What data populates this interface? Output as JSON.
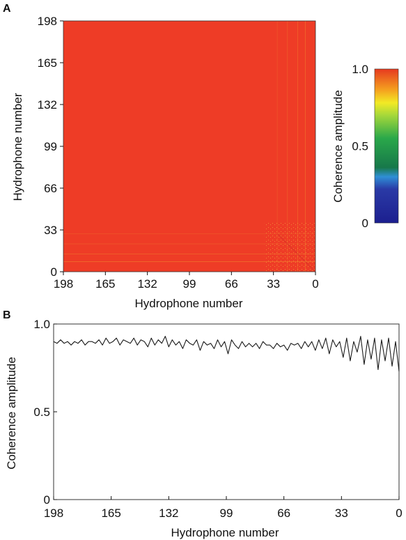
{
  "chart_data": [
    {
      "panel": "A",
      "type": "heatmap",
      "xlabel": "Hydrophone number",
      "ylabel": "Hydrophone number",
      "x_ticks": [
        "198",
        "165",
        "132",
        "99",
        "66",
        "33",
        "0"
      ],
      "y_ticks": [
        "198",
        "165",
        "132",
        "99",
        "66",
        "33",
        "0"
      ],
      "xlim": [
        198,
        0
      ],
      "ylim": [
        0,
        198
      ],
      "colorbar": {
        "label": "Coherence amplitude",
        "ticks": [
          "1.0",
          "0.5",
          "0"
        ],
        "range": [
          0,
          1
        ],
        "colors": [
          "#1c1f8f",
          "#2a3aa6",
          "#2f8fd6",
          "#17784a",
          "#2aa84a",
          "#a6d83a",
          "#f2ea25",
          "#f5a41f",
          "#e63a1f"
        ]
      },
      "dominant_value": 0.95,
      "dominant_color": "#ee3c26",
      "note_color_low": "#f3a030"
    },
    {
      "panel": "B",
      "type": "line",
      "xlabel": "Hydrophone number",
      "ylabel": "Coherence amplitude",
      "x_ticks": [
        "198",
        "165",
        "132",
        "99",
        "66",
        "33",
        "0"
      ],
      "y_ticks": [
        "1.0",
        "0.5",
        "0"
      ],
      "xlim": [
        198,
        0
      ],
      "ylim": [
        0,
        1
      ],
      "series": [
        {
          "x": [
            198,
            196,
            194,
            192,
            190,
            188,
            186,
            184,
            182,
            180,
            178,
            176,
            174,
            172,
            170,
            168,
            166,
            164,
            162,
            160,
            158,
            156,
            154,
            152,
            150,
            148,
            146,
            144,
            142,
            140,
            138,
            136,
            134,
            132,
            130,
            128,
            126,
            124,
            122,
            120,
            118,
            116,
            114,
            112,
            110,
            108,
            106,
            104,
            102,
            100,
            98,
            96,
            94,
            92,
            90,
            88,
            86,
            84,
            82,
            80,
            78,
            76,
            74,
            72,
            70,
            68,
            66,
            64,
            62,
            60,
            58,
            56,
            54,
            52,
            50,
            48,
            46,
            44,
            42,
            40,
            38,
            36,
            34,
            32,
            30,
            28,
            26,
            24,
            22,
            20,
            18,
            16,
            14,
            12,
            10,
            8,
            6,
            4,
            2,
            0
          ],
          "y": [
            0.9,
            0.89,
            0.91,
            0.89,
            0.9,
            0.88,
            0.9,
            0.89,
            0.91,
            0.88,
            0.9,
            0.9,
            0.89,
            0.91,
            0.88,
            0.92,
            0.89,
            0.9,
            0.92,
            0.88,
            0.91,
            0.9,
            0.89,
            0.92,
            0.88,
            0.91,
            0.9,
            0.87,
            0.92,
            0.88,
            0.91,
            0.89,
            0.93,
            0.87,
            0.91,
            0.88,
            0.9,
            0.86,
            0.91,
            0.89,
            0.88,
            0.91,
            0.85,
            0.9,
            0.88,
            0.89,
            0.86,
            0.91,
            0.87,
            0.9,
            0.83,
            0.91,
            0.88,
            0.86,
            0.9,
            0.87,
            0.89,
            0.87,
            0.89,
            0.86,
            0.9,
            0.88,
            0.88,
            0.86,
            0.89,
            0.87,
            0.88,
            0.85,
            0.89,
            0.88,
            0.89,
            0.86,
            0.9,
            0.87,
            0.9,
            0.85,
            0.91,
            0.86,
            0.92,
            0.83,
            0.91,
            0.87,
            0.9,
            0.81,
            0.92,
            0.79,
            0.9,
            0.84,
            0.93,
            0.77,
            0.91,
            0.8,
            0.92,
            0.74,
            0.91,
            0.79,
            0.92,
            0.76,
            0.9,
            0.73
          ]
        }
      ]
    }
  ]
}
